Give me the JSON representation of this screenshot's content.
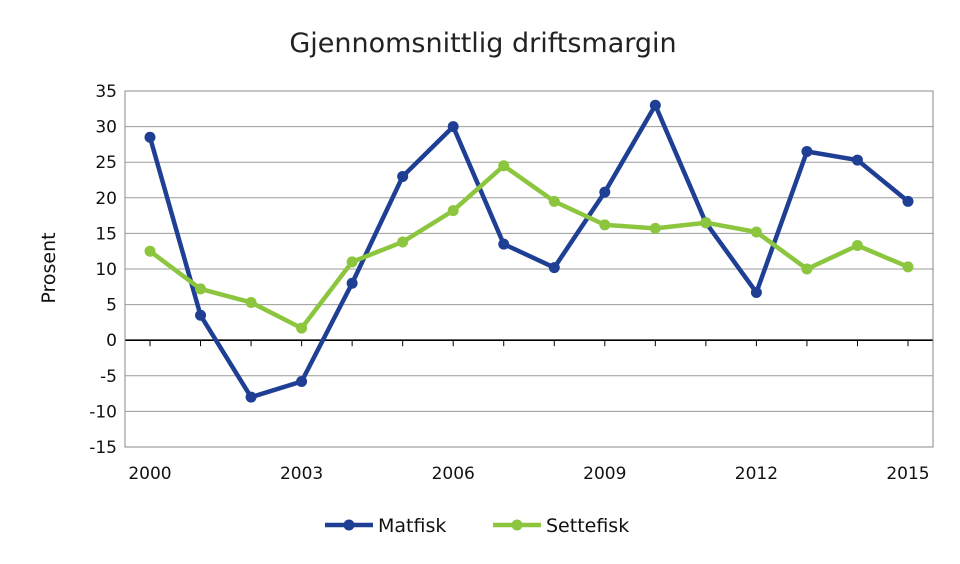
{
  "chart_data": {
    "type": "line",
    "title": "Gjennomsnittlig driftsmargin",
    "xlabel": "",
    "ylabel": "Prosent",
    "xlim": [
      2000,
      2015
    ],
    "ylim": [
      -15,
      35
    ],
    "xticks": [
      2000,
      2003,
      2006,
      2009,
      2012,
      2015
    ],
    "yticks": [
      -15,
      -10,
      -5,
      0,
      5,
      10,
      15,
      20,
      25,
      30,
      35
    ],
    "grid": true,
    "legend_position": "bottom",
    "x": [
      2000,
      2001,
      2002,
      2003,
      2004,
      2005,
      2006,
      2007,
      2008,
      2009,
      2010,
      2011,
      2012,
      2013,
      2014,
      2015
    ],
    "series": [
      {
        "name": "Matfisk",
        "color": "#1f3f95",
        "values": [
          28.5,
          3.5,
          -8,
          -5.8,
          8,
          23,
          30,
          13.5,
          10.2,
          20.8,
          33,
          16.5,
          6.7,
          26.5,
          25.3,
          19.5
        ]
      },
      {
        "name": "Settefisk",
        "color": "#8cc63f",
        "values": [
          12.5,
          7.2,
          5.3,
          1.7,
          11,
          13.8,
          18.2,
          24.5,
          19.5,
          16.2,
          15.7,
          16.5,
          15.2,
          10,
          13.3,
          10.3
        ]
      }
    ]
  }
}
